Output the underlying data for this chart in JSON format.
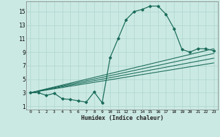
{
  "title": "",
  "xlabel": "Humidex (Indice chaleur)",
  "ylabel": "",
  "bg_color": "#cbe9e3",
  "grid_color": "#b0d8d0",
  "line_color": "#1a6b5a",
  "xlim": [
    -0.5,
    23.5
  ],
  "ylim": [
    0.5,
    16.5
  ],
  "xticks": [
    0,
    1,
    2,
    3,
    4,
    5,
    6,
    7,
    8,
    9,
    10,
    11,
    12,
    13,
    14,
    15,
    16,
    17,
    18,
    19,
    20,
    21,
    22,
    23
  ],
  "yticks": [
    1,
    3,
    5,
    7,
    9,
    11,
    13,
    15
  ],
  "main_curve_x": [
    0,
    1,
    2,
    3,
    4,
    5,
    6,
    7,
    8,
    9,
    10,
    11,
    12,
    13,
    14,
    15,
    16,
    17,
    18,
    19,
    20,
    21,
    22,
    23
  ],
  "main_curve_y": [
    3.0,
    3.0,
    2.6,
    2.9,
    2.1,
    2.0,
    1.8,
    1.6,
    3.1,
    1.5,
    8.2,
    11.0,
    13.8,
    15.0,
    15.3,
    15.8,
    15.8,
    14.6,
    12.5,
    9.4,
    9.0,
    9.5,
    9.5,
    9.2
  ],
  "linear_lines": [
    {
      "x": [
        0,
        23
      ],
      "y": [
        3.0,
        9.5
      ]
    },
    {
      "x": [
        0,
        23
      ],
      "y": [
        3.0,
        8.8
      ]
    },
    {
      "x": [
        0,
        23
      ],
      "y": [
        3.0,
        8.1
      ]
    },
    {
      "x": [
        0,
        23
      ],
      "y": [
        3.0,
        7.4
      ]
    }
  ]
}
